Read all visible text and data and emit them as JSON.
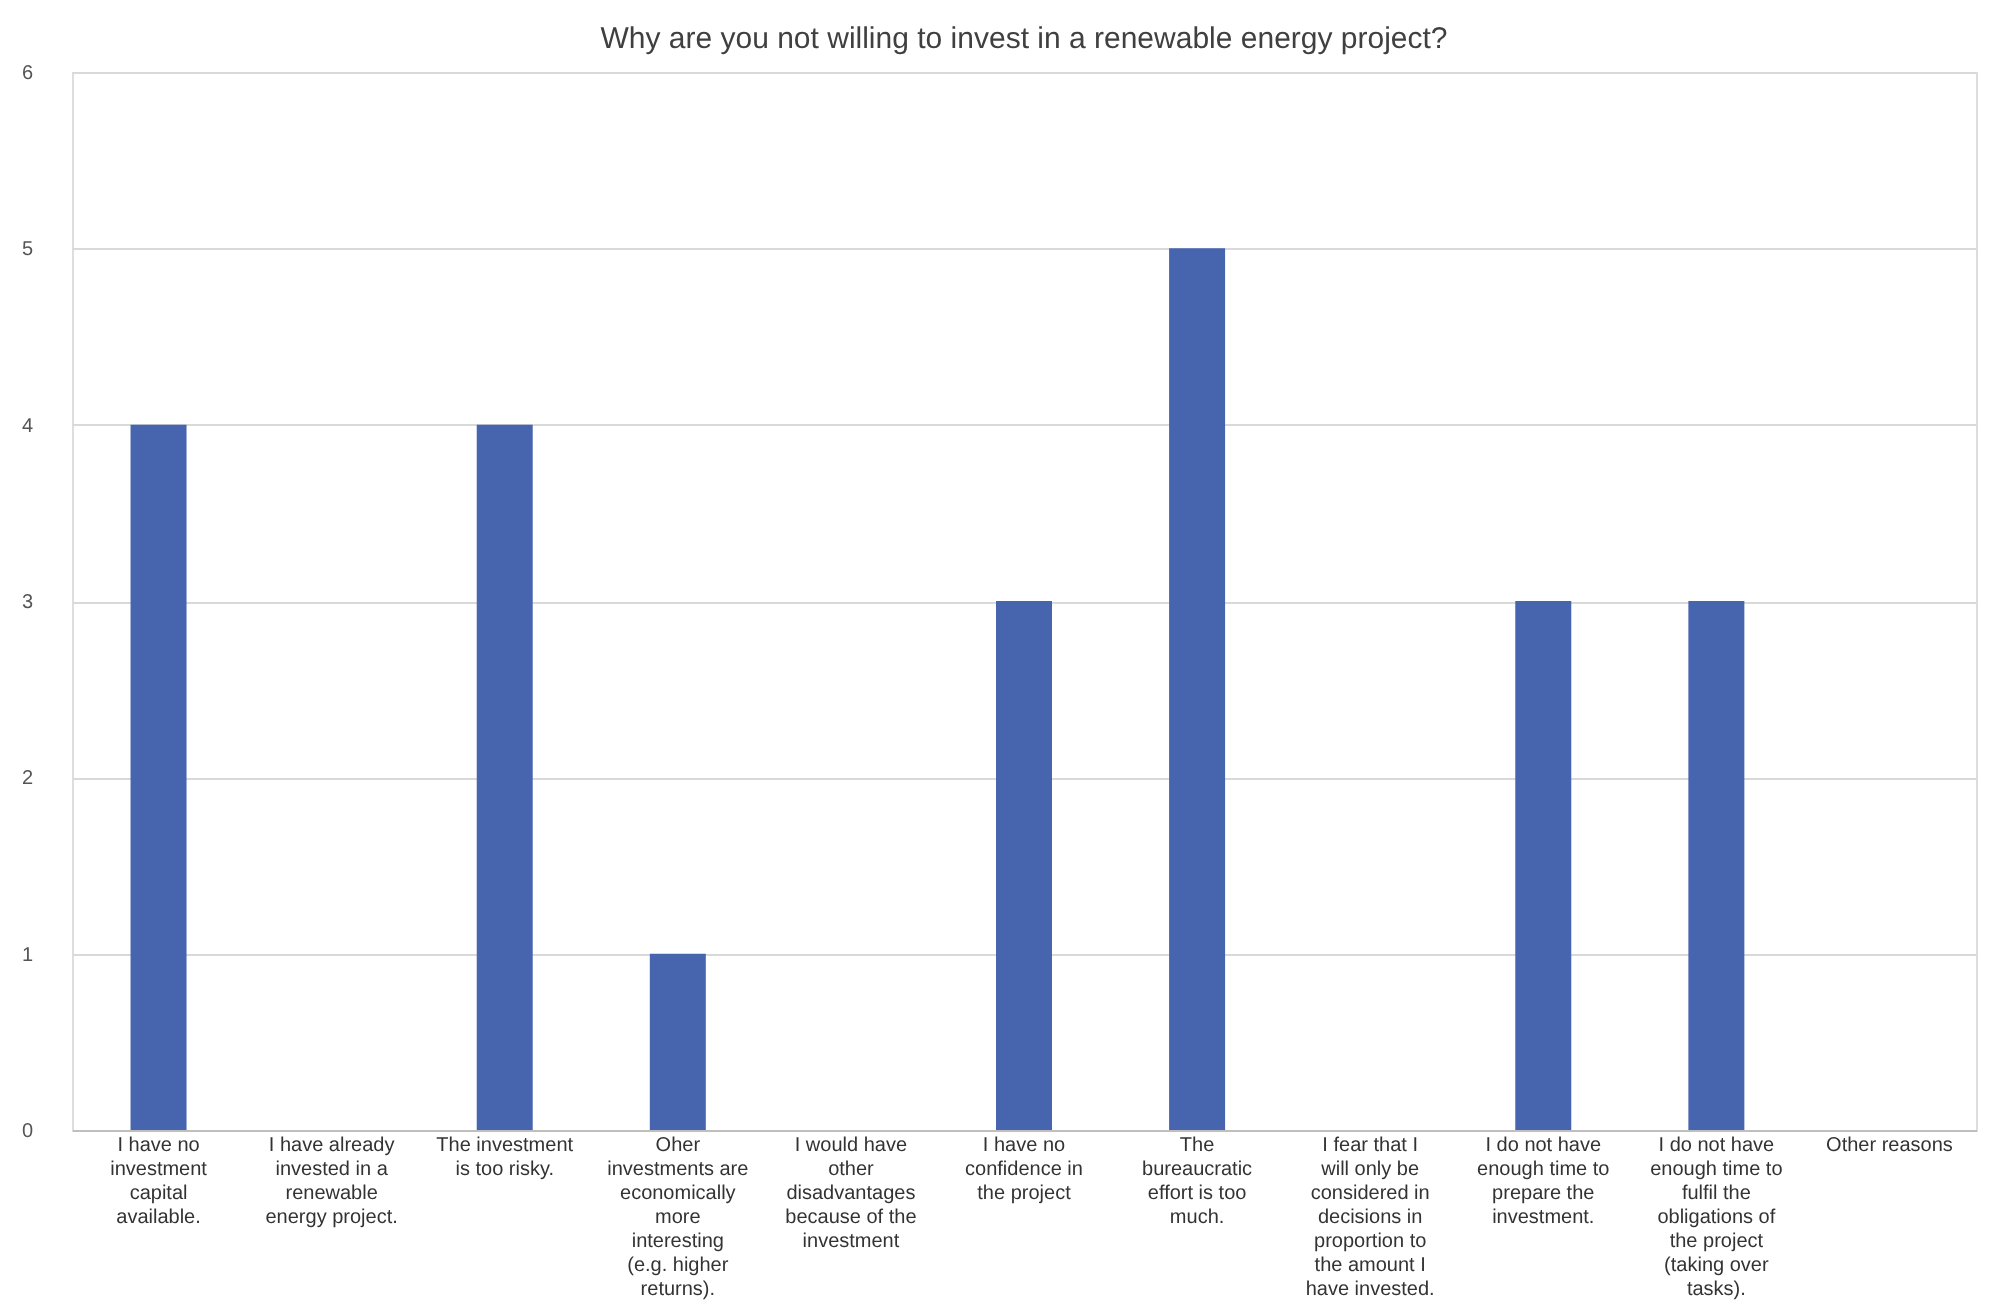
{
  "chart_data": {
    "type": "bar",
    "title": "Why are you not willing to invest in a renewable energy project?",
    "categories": [
      "I have no investment capital available.",
      "I have already invested in a renewable energy project.",
      "The investment is too risky.",
      "Oher investments are economically more interesting (e.g. higher returns).",
      "I would have other disadvantages because of the investment",
      "I have no confidence in the project",
      "The bureaucratic effort is too much.",
      "I fear that I will only be considered in decisions in proportion to the amount I have invested.",
      "I do not have enough time to prepare the investment.",
      "I do not have enough time to fulfil the obligations of the project (taking over tasks).",
      "Other reasons"
    ],
    "values": [
      4,
      0,
      4,
      1,
      0,
      3,
      5,
      0,
      3,
      3,
      0
    ],
    "color": "#4765af",
    "ylim": [
      0,
      6
    ],
    "yticks": [
      0,
      1,
      2,
      3,
      4,
      5,
      6
    ],
    "grid": "y"
  }
}
